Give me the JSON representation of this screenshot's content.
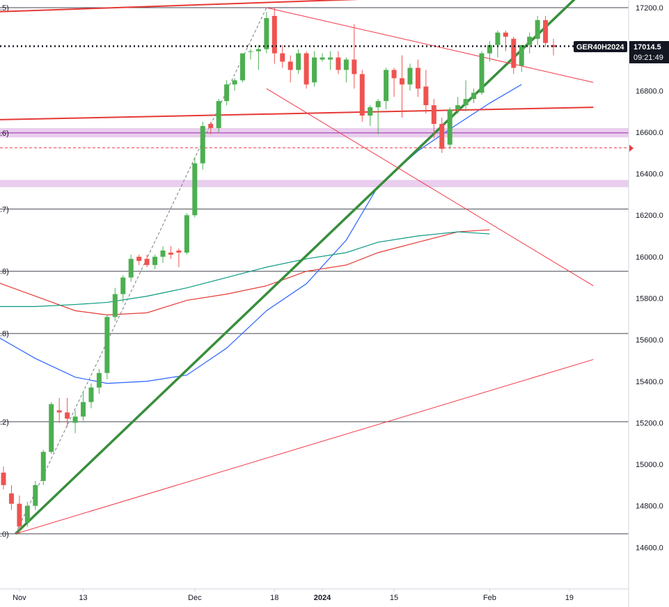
{
  "chart_data": {
    "type": "candlestick",
    "symbol": "GER40H2024",
    "last_price": "17014.5",
    "countdown": "09:21:49",
    "y_axis": {
      "range": [
        14420,
        17250
      ],
      "ticks": [
        "14600.0",
        "14800.0",
        "15000.0",
        "15200.0",
        "15400.0",
        "15600.0",
        "15800.0",
        "16000.0",
        "16200.0",
        "16400.0",
        "16600.0",
        "16800.0",
        "17000.0",
        "17200.0"
      ]
    },
    "x_axis": {
      "labels": [
        {
          "text": "Nov",
          "bar": 2
        },
        {
          "text": "13",
          "bar": 10
        },
        {
          "text": "Dec",
          "bar": 24
        },
        {
          "text": "18",
          "bar": 34
        },
        {
          "text": "2024",
          "bar": 40
        },
        {
          "text": "15",
          "bar": 49
        },
        {
          "text": "Feb",
          "bar": 61
        },
        {
          "text": "19",
          "bar": 71
        }
      ]
    },
    "fib_labels": [
      {
        "text": ".5)",
        "price": 17200
      },
      {
        "text": ".6)",
        "price": 16597
      },
      {
        "text": ".7)",
        "price": 16230
      },
      {
        "text": ".8)",
        "price": 15930
      },
      {
        "text": ".8)",
        "price": 15630
      },
      {
        "text": ".2)",
        "price": 15205
      },
      {
        "text": ".0)",
        "price": 14665
      }
    ],
    "horizontal_levels": [
      17200,
      16230,
      15930,
      15630,
      15205,
      14665
    ],
    "dashed_level": 16525,
    "purple_zones": [
      [
        16575,
        16620
      ],
      [
        16335,
        16370
      ]
    ],
    "candles": [
      [
        14960,
        14990,
        14880,
        14900
      ],
      [
        14860,
        14900,
        14780,
        14810
      ],
      [
        14810,
        14850,
        14665,
        14700
      ],
      [
        14720,
        14820,
        14700,
        14800
      ],
      [
        14800,
        14920,
        14780,
        14900
      ],
      [
        14920,
        15070,
        14900,
        15060
      ],
      [
        15060,
        15300,
        15050,
        15290
      ],
      [
        15260,
        15320,
        15200,
        15250
      ],
      [
        15250,
        15320,
        15180,
        15220
      ],
      [
        15200,
        15260,
        15150,
        15230
      ],
      [
        15230,
        15350,
        15210,
        15300
      ],
      [
        15300,
        15390,
        15270,
        15370
      ],
      [
        15370,
        15460,
        15340,
        15440
      ],
      [
        15440,
        15720,
        15410,
        15710
      ],
      [
        15710,
        15850,
        15690,
        15820
      ],
      [
        15820,
        15910,
        15780,
        15900
      ],
      [
        15900,
        16010,
        15880,
        15990
      ],
      [
        16000,
        16010,
        15960,
        15980
      ],
      [
        15990,
        16010,
        15950,
        15960
      ],
      [
        15960,
        16010,
        15940,
        16000
      ],
      [
        16000,
        16050,
        15970,
        16030
      ],
      [
        16020,
        16050,
        15990,
        16010
      ],
      [
        16030,
        16040,
        15950,
        16020
      ],
      [
        16020,
        16210,
        16010,
        16200
      ],
      [
        16200,
        16480,
        16190,
        16450
      ],
      [
        16450,
        16650,
        16420,
        16630
      ],
      [
        16640,
        16650,
        16590,
        16620
      ],
      [
        16620,
        16760,
        16600,
        16750
      ],
      [
        16750,
        16850,
        16730,
        16830
      ],
      [
        16830,
        16860,
        16800,
        16850
      ],
      [
        16850,
        16960,
        16840,
        16980
      ],
      [
        16990,
        17000,
        16950,
        16990
      ],
      [
        16990,
        17020,
        16900,
        17000
      ],
      [
        17000,
        17180,
        16980,
        17150
      ],
      [
        17160,
        17200,
        16930,
        16980
      ],
      [
        16980,
        17020,
        16910,
        16940
      ],
      [
        16940,
        16970,
        16840,
        16900
      ],
      [
        16900,
        17000,
        16880,
        16980
      ],
      [
        16980,
        16990,
        16810,
        16830
      ],
      [
        16840,
        16990,
        16820,
        16960
      ],
      [
        16950,
        16980,
        16940,
        16960
      ],
      [
        16950,
        16990,
        16900,
        16960
      ],
      [
        16960,
        16990,
        16880,
        16900
      ],
      [
        16900,
        16960,
        16840,
        16950
      ],
      [
        16950,
        17120,
        16810,
        16880
      ],
      [
        16880,
        16900,
        16650,
        16680
      ],
      [
        16680,
        16730,
        16630,
        16720
      ],
      [
        16720,
        16760,
        16590,
        16750
      ],
      [
        16750,
        16910,
        16710,
        16900
      ],
      [
        16900,
        16910,
        16770,
        16860
      ],
      [
        16860,
        16970,
        16670,
        16830
      ],
      [
        16830,
        16930,
        16800,
        16910
      ],
      [
        16910,
        16950,
        16770,
        16810
      ],
      [
        16820,
        16900,
        16690,
        16730
      ],
      [
        16730,
        16760,
        16570,
        16640
      ],
      [
        16640,
        16670,
        16500,
        16520
      ],
      [
        16540,
        16720,
        16520,
        16710
      ],
      [
        16710,
        16770,
        16690,
        16730
      ],
      [
        16730,
        16850,
        16700,
        16760
      ],
      [
        16760,
        16810,
        16740,
        16790
      ],
      [
        16790,
        16990,
        16780,
        16980
      ],
      [
        16980,
        17040,
        16940,
        17020
      ],
      [
        17020,
        17090,
        16960,
        17080
      ],
      [
        17080,
        17090,
        16990,
        17060
      ],
      [
        17050,
        17060,
        16880,
        16910
      ],
      [
        16920,
        17020,
        16890,
        17020
      ],
      [
        17020,
        17080,
        16980,
        17060
      ],
      [
        17050,
        17160,
        17020,
        17140
      ],
      [
        17140,
        17160,
        17010,
        17030
      ],
      [
        17020,
        17050,
        16970,
        17010
      ]
    ],
    "moving_averages": [
      {
        "color": "#2962ff",
        "points": [
          [
            -1,
            15620
          ],
          [
            4,
            15510
          ],
          [
            9,
            15420
          ],
          [
            13,
            15390
          ],
          [
            18,
            15400
          ],
          [
            23,
            15430
          ],
          [
            28,
            15560
          ],
          [
            33,
            15740
          ],
          [
            38,
            15870
          ],
          [
            43,
            16080
          ],
          [
            47,
            16340
          ],
          [
            52,
            16510
          ],
          [
            57,
            16640
          ],
          [
            61,
            16740
          ],
          [
            65,
            16830
          ]
        ]
      },
      {
        "color": "#e53935",
        "points": [
          [
            -1,
            15880
          ],
          [
            4,
            15810
          ],
          [
            9,
            15740
          ],
          [
            13,
            15720
          ],
          [
            18,
            15730
          ],
          [
            23,
            15790
          ],
          [
            28,
            15820
          ],
          [
            33,
            15860
          ],
          [
            38,
            15930
          ],
          [
            43,
            15960
          ],
          [
            47,
            16020
          ],
          [
            52,
            16070
          ],
          [
            57,
            16120
          ],
          [
            61,
            16130
          ]
        ]
      },
      {
        "color": "#089981",
        "points": [
          [
            -1,
            15760
          ],
          [
            4,
            15760
          ],
          [
            9,
            15770
          ],
          [
            13,
            15780
          ],
          [
            18,
            15810
          ],
          [
            23,
            15850
          ],
          [
            28,
            15900
          ],
          [
            33,
            15950
          ],
          [
            38,
            15990
          ],
          [
            43,
            16020
          ],
          [
            47,
            16070
          ],
          [
            52,
            16100
          ],
          [
            57,
            16120
          ],
          [
            61,
            16110
          ]
        ]
      }
    ],
    "trendlines": [
      {
        "color": "#388e3c",
        "width": 3.5,
        "from": [
          1.5,
          14665
        ],
        "to": [
          73,
          17290
        ]
      },
      {
        "color": "#e53935",
        "width": 2,
        "from": [
          -1,
          16660
        ],
        "to": [
          74,
          16720
        ]
      },
      {
        "color": "#e53935",
        "width": 2,
        "from": [
          -1,
          17180
        ],
        "to": [
          52,
          17250
        ]
      },
      {
        "color": "#f23645",
        "width": 1,
        "from": [
          1.5,
          14665
        ],
        "to": [
          74,
          15505
        ]
      },
      {
        "color": "#f23645",
        "width": 1,
        "from": [
          33,
          17200
        ],
        "to": [
          74,
          16840
        ]
      },
      {
        "color": "#f23645",
        "width": 1,
        "from": [
          33,
          16810
        ],
        "to": [
          74,
          15860
        ]
      }
    ],
    "dashed_impulse": {
      "from": [
        1.5,
        14665
      ],
      "to": [
        33,
        17200
      ]
    },
    "grid": false,
    "bull_color": "#4caf50",
    "bear_color": "#ef5350"
  }
}
